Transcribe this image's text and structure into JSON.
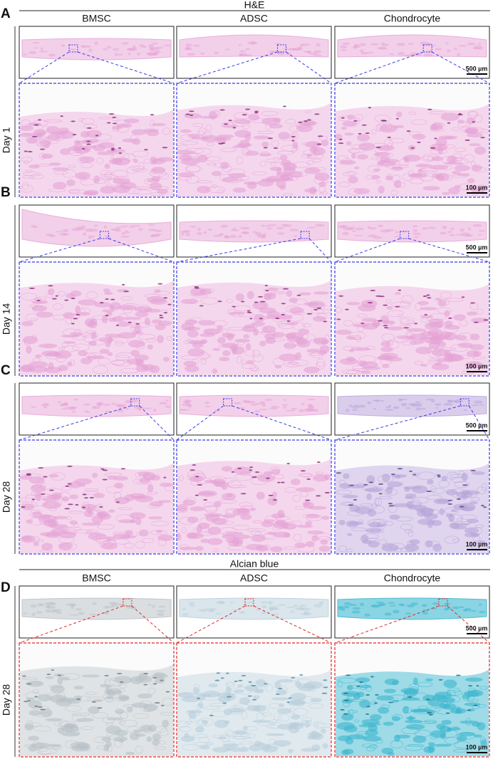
{
  "sections": [
    {
      "title": "H&E",
      "columns": [
        "BMSC",
        "ADSC",
        "Chondrocyte"
      ]
    },
    {
      "title": "Alcian blue",
      "columns": [
        "BMSC",
        "ADSC",
        "Chondrocyte"
      ]
    }
  ],
  "panels": [
    {
      "label": "A",
      "day": "Day 1",
      "overview_scale": "500 µm",
      "zoom_scale": "100 µm"
    },
    {
      "label": "B",
      "day": "Day 14",
      "overview_scale": "500 µm",
      "zoom_scale": "100 µm"
    },
    {
      "label": "C",
      "day": "Day 28",
      "overview_scale": "500 µm",
      "zoom_scale": "100 µm"
    },
    {
      "label": "D",
      "day": "Day 28",
      "overview_scale": "500 µm",
      "zoom_scale": "100 µm"
    }
  ]
}
